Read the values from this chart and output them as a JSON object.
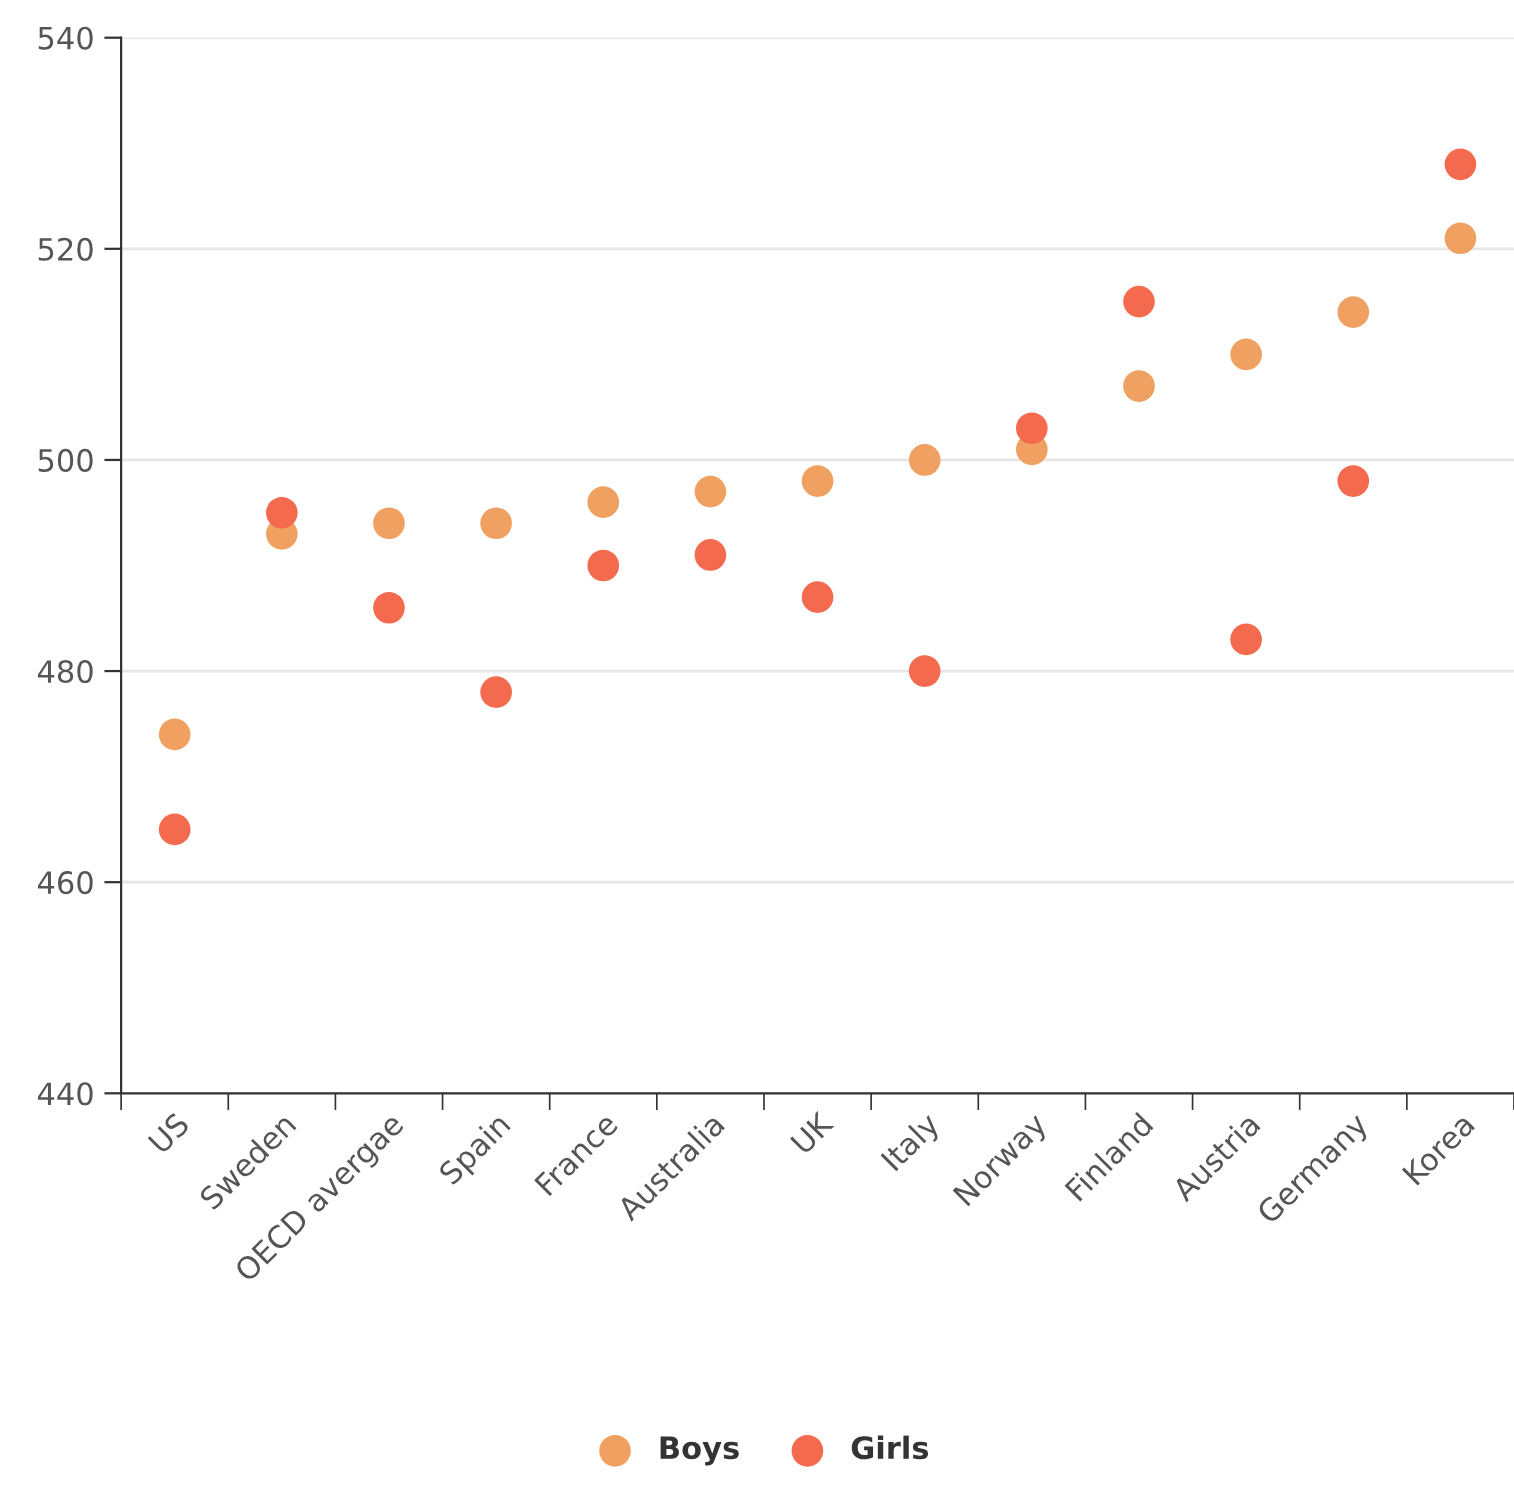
{
  "chart_data": {
    "type": "scatter",
    "categories": [
      "US",
      "Sweden",
      "OECD avergae",
      "Spain",
      "France",
      "Australia",
      "UK",
      "Italy",
      "Norway",
      "Finland",
      "Austria",
      "Germany",
      "Korea"
    ],
    "series": [
      {
        "name": "Boys",
        "color": "#f0a060",
        "values": [
          474,
          493,
          494,
          494,
          496,
          497,
          498,
          500,
          501,
          507,
          510,
          514,
          521
        ]
      },
      {
        "name": "Girls",
        "color": "#f46a4e",
        "values": [
          465,
          495,
          486,
          478,
          490,
          491,
          487,
          480,
          503,
          515,
          483,
          498,
          528
        ]
      }
    ],
    "ylim": [
      440,
      540
    ],
    "yticks": [
      440,
      460,
      480,
      500,
      520,
      540
    ],
    "grid": "y",
    "legend": "bottom",
    "marker": "circle"
  }
}
